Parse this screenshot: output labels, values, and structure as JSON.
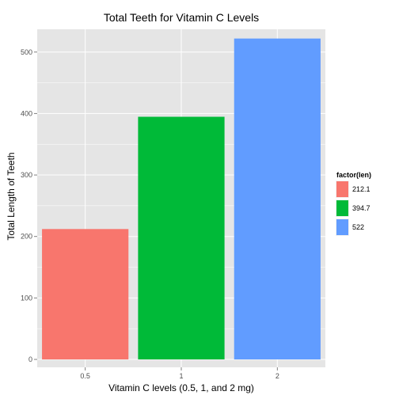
{
  "chart_data": {
    "type": "bar",
    "title": "Total Teeth for Vitamin C Levels",
    "xlabel": "Vitamin C levels (0.5, 1, and 2 mg)",
    "ylabel": "Total Length of Teeth",
    "categories": [
      "0.5",
      "1",
      "2"
    ],
    "values": [
      212.1,
      394.7,
      522
    ],
    "colors": [
      "#f8766d",
      "#00ba38",
      "#619cff"
    ],
    "ylim": [
      0,
      547
    ],
    "yticks": [
      0,
      100,
      200,
      300,
      400,
      500
    ],
    "grid": true,
    "legend": {
      "title": "factor(len)",
      "position": "right",
      "entries": [
        {
          "label": "212.1",
          "color": "#f8766d"
        },
        {
          "label": "394.7",
          "color": "#00ba38"
        },
        {
          "label": "522",
          "color": "#619cff"
        }
      ]
    },
    "panel_background": "#e5e5e5",
    "grid_color": "#ffffff"
  }
}
